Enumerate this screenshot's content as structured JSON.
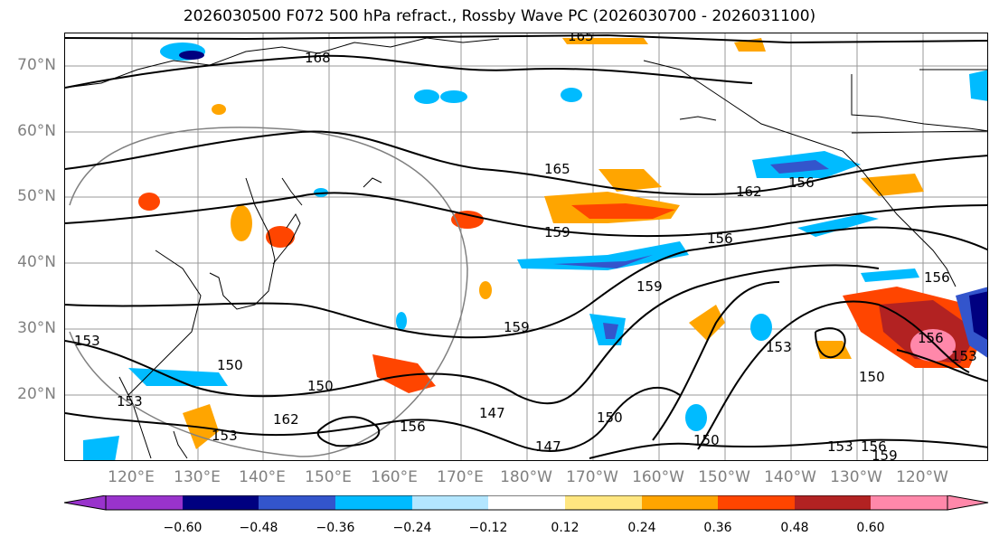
{
  "title": "2026030500 F072 500 hPa refract., Rossby Wave PC (2026030700 - 2026031100)",
  "lat_labels": [
    "70°N",
    "60°N",
    "50°N",
    "40°N",
    "30°N",
    "20°N"
  ],
  "lon_labels": [
    "120°E",
    "130°E",
    "140°E",
    "150°E",
    "160°E",
    "170°E",
    "180°W",
    "170°W",
    "160°W",
    "150°W",
    "140°W",
    "130°W",
    "120°W"
  ],
  "colorbar": {
    "ticks": [
      "−0.60",
      "−0.48",
      "−0.36",
      "−0.24",
      "−0.12",
      "0.12",
      "0.24",
      "0.36",
      "0.48",
      "0.60"
    ],
    "colors": [
      "#9933cc",
      "#000080",
      "#3355cc",
      "#00bbff",
      "#b3e6ff",
      "#ffffff",
      "#ffe680",
      "#ffa500",
      "#ff4500",
      "#b22222",
      "#ff88aa"
    ]
  },
  "contour_labels": [
    "165",
    "168",
    "165",
    "162",
    "156",
    "159",
    "156",
    "159",
    "159",
    "150",
    "150",
    "147",
    "150",
    "147",
    "153",
    "150",
    "153",
    "153",
    "150",
    "162",
    "153",
    "156",
    "153",
    "156",
    "159",
    "156",
    "153",
    "156"
  ],
  "colors": {
    "land_line": "#000000",
    "contour": "#000000",
    "grid": "#999999",
    "circle": "#808080"
  }
}
